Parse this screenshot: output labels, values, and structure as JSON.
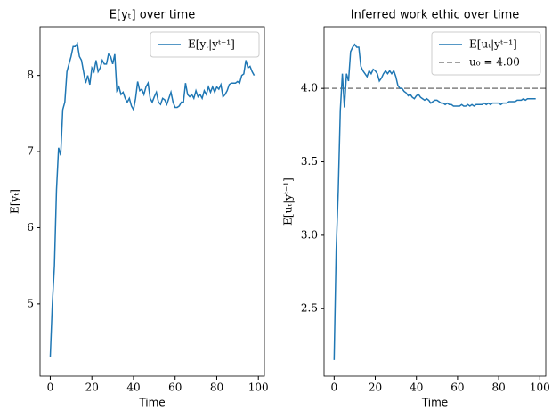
{
  "chart_data": [
    {
      "type": "line",
      "title": "E[yₜ] over time",
      "xlabel": "Time",
      "ylabel": "E[yₜ]",
      "x": [
        0,
        1,
        2,
        3,
        4,
        5,
        6,
        7,
        8,
        9,
        10,
        11,
        12,
        13,
        14,
        15,
        16,
        17,
        18,
        19,
        20,
        21,
        22,
        23,
        24,
        25,
        26,
        27,
        28,
        29,
        30,
        31,
        32,
        33,
        34,
        35,
        36,
        37,
        38,
        39,
        40,
        41,
        42,
        43,
        44,
        45,
        46,
        47,
        48,
        49,
        50,
        51,
        52,
        53,
        54,
        55,
        56,
        57,
        58,
        59,
        60,
        61,
        62,
        63,
        64,
        65,
        66,
        67,
        68,
        69,
        70,
        71,
        72,
        73,
        74,
        75,
        76,
        77,
        78,
        79,
        80,
        81,
        82,
        83,
        84,
        85,
        86,
        87,
        88,
        89,
        90,
        91,
        92,
        93,
        94,
        95,
        96,
        97,
        98
      ],
      "series": [
        {
          "name": "E[yₜ|yᵗ⁻¹]",
          "color": "#1f77b4",
          "values": [
            4.3,
            5.0,
            5.5,
            6.5,
            7.05,
            6.95,
            7.55,
            7.65,
            8.05,
            8.15,
            8.25,
            8.38,
            8.38,
            8.42,
            8.25,
            8.2,
            8.05,
            7.9,
            8.0,
            7.88,
            8.1,
            8.05,
            8.2,
            8.05,
            8.1,
            8.2,
            8.15,
            8.15,
            8.28,
            8.25,
            8.15,
            8.28,
            7.8,
            7.85,
            7.75,
            7.78,
            7.7,
            7.65,
            7.7,
            7.6,
            7.55,
            7.7,
            7.92,
            7.8,
            7.82,
            7.75,
            7.85,
            7.9,
            7.7,
            7.65,
            7.72,
            7.78,
            7.65,
            7.62,
            7.7,
            7.68,
            7.62,
            7.7,
            7.78,
            7.65,
            7.58,
            7.58,
            7.6,
            7.65,
            7.65,
            7.9,
            7.75,
            7.72,
            7.75,
            7.7,
            7.8,
            7.72,
            7.75,
            7.7,
            7.8,
            7.75,
            7.85,
            7.78,
            7.85,
            7.78,
            7.85,
            7.82,
            7.88,
            7.72,
            7.75,
            7.8,
            7.88,
            7.9,
            7.9,
            7.9,
            7.92,
            7.9,
            8.0,
            8.02,
            8.2,
            8.1,
            8.12,
            8.05,
            8.0
          ]
        }
      ],
      "xlim": [
        -4.9,
        102.9
      ],
      "xticks": [
        0,
        20,
        40,
        60,
        80,
        100
      ],
      "ylim": [
        4.05,
        8.64
      ],
      "yticks": [
        5,
        6,
        7,
        8
      ],
      "legend": "upper right"
    },
    {
      "type": "line",
      "title": "Inferred work ethic over time",
      "xlabel": "Time",
      "ylabel": "E[uₜ|yᵗ⁻¹]",
      "x": [
        0,
        1,
        2,
        3,
        4,
        5,
        6,
        7,
        8,
        9,
        10,
        11,
        12,
        13,
        14,
        15,
        16,
        17,
        18,
        19,
        20,
        21,
        22,
        23,
        24,
        25,
        26,
        27,
        28,
        29,
        30,
        31,
        32,
        33,
        34,
        35,
        36,
        37,
        38,
        39,
        40,
        41,
        42,
        43,
        44,
        45,
        46,
        47,
        48,
        49,
        50,
        51,
        52,
        53,
        54,
        55,
        56,
        57,
        58,
        59,
        60,
        61,
        62,
        63,
        64,
        65,
        66,
        67,
        68,
        69,
        70,
        71,
        72,
        73,
        74,
        75,
        76,
        77,
        78,
        79,
        80,
        81,
        82,
        83,
        84,
        85,
        86,
        87,
        88,
        89,
        90,
        91,
        92,
        93,
        94,
        95,
        96,
        97,
        98
      ],
      "series": [
        {
          "name": "E[uₜ|yᵗ⁻¹]",
          "color": "#1f77b4",
          "values": [
            2.15,
            2.9,
            3.3,
            3.85,
            4.1,
            3.87,
            4.1,
            4.05,
            4.25,
            4.28,
            4.3,
            4.28,
            4.28,
            4.15,
            4.12,
            4.1,
            4.08,
            4.12,
            4.1,
            4.13,
            4.12,
            4.1,
            4.05,
            4.07,
            4.1,
            4.12,
            4.1,
            4.12,
            4.1,
            4.12,
            4.08,
            4.02,
            4.0,
            4.0,
            3.98,
            3.97,
            3.95,
            3.96,
            3.94,
            3.93,
            3.95,
            3.96,
            3.94,
            3.93,
            3.92,
            3.93,
            3.92,
            3.9,
            3.91,
            3.92,
            3.92,
            3.91,
            3.9,
            3.9,
            3.89,
            3.9,
            3.89,
            3.89,
            3.88,
            3.88,
            3.88,
            3.88,
            3.89,
            3.88,
            3.88,
            3.89,
            3.88,
            3.89,
            3.88,
            3.89,
            3.89,
            3.89,
            3.89,
            3.9,
            3.89,
            3.9,
            3.89,
            3.9,
            3.9,
            3.9,
            3.9,
            3.89,
            3.9,
            3.9,
            3.9,
            3.91,
            3.91,
            3.91,
            3.91,
            3.92,
            3.92,
            3.92,
            3.93,
            3.92,
            3.93,
            3.93,
            3.93,
            3.93,
            3.93
          ]
        }
      ],
      "hlines": [
        {
          "name": "u₀ = 4.00",
          "value": 4.0,
          "color": "#808080"
        }
      ],
      "xlim": [
        -4.9,
        102.9
      ],
      "xticks": [
        0,
        20,
        40,
        60,
        80,
        100
      ],
      "ylim": [
        2.04,
        4.42
      ],
      "yticks": [
        {
          "value": 2.5,
          "label": "2.5"
        },
        {
          "value": 3,
          "label": "3.0"
        },
        {
          "value": 3.5,
          "label": "3.5"
        },
        {
          "value": 4,
          "label": "4.0"
        }
      ],
      "legend": "upper right"
    }
  ]
}
